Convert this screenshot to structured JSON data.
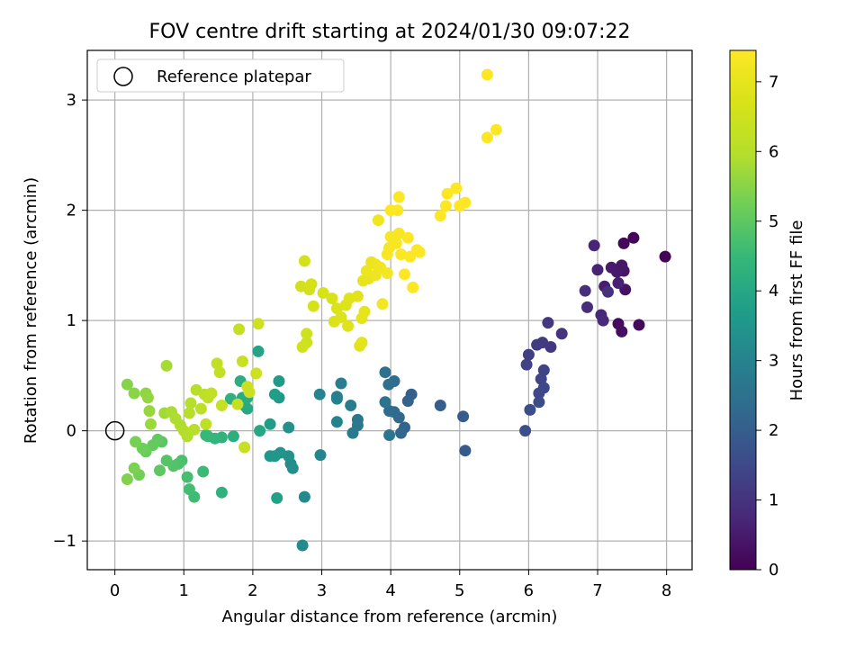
{
  "chart_data": {
    "type": "scatter",
    "title": "FOV centre drift starting at 2024/01/30 09:07:22",
    "xlabel": "Angular distance from reference (arcmin)",
    "ylabel": "Rotation from reference (arcmin)",
    "xlim": [
      -0.4,
      8.37
    ],
    "ylim": [
      -1.26,
      3.45
    ],
    "xticks": [
      "0",
      "1",
      "2",
      "3",
      "4",
      "5",
      "6",
      "7",
      "8"
    ],
    "yticks": [
      "−1",
      "0",
      "1",
      "2",
      "3"
    ],
    "grid": true,
    "legend": {
      "position": "top-left",
      "entries": [
        {
          "label": "Reference platepar",
          "marker": "open-circle"
        }
      ]
    },
    "reference_point": {
      "x": 0,
      "y": 0
    },
    "colorbar": {
      "label": "Hours from first FF file",
      "colormap": "viridis",
      "range": [
        0,
        7.45
      ],
      "ticks": [
        "0",
        "1",
        "2",
        "3",
        "4",
        "5",
        "6",
        "7"
      ]
    },
    "points": [
      [
        7.98,
        1.58,
        0.05
      ],
      [
        7.52,
        1.75,
        0.1
      ],
      [
        7.38,
        1.7,
        0.12
      ],
      [
        7.6,
        0.96,
        0.15
      ],
      [
        7.3,
        0.97,
        0.2
      ],
      [
        7.35,
        0.9,
        0.25
      ],
      [
        7.4,
        1.28,
        0.3
      ],
      [
        7.38,
        1.45,
        0.35
      ],
      [
        7.35,
        1.5,
        0.4
      ],
      [
        7.28,
        1.44,
        0.45
      ],
      [
        7.2,
        1.48,
        0.5
      ],
      [
        7.1,
        1.31,
        0.55
      ],
      [
        7.3,
        1.34,
        0.6
      ],
      [
        7.0,
        1.46,
        0.65
      ],
      [
        6.95,
        1.68,
        0.7
      ],
      [
        7.05,
        1.05,
        0.75
      ],
      [
        7.08,
        1.0,
        0.8
      ],
      [
        6.85,
        1.12,
        0.85
      ],
      [
        6.82,
        1.27,
        0.9
      ],
      [
        7.15,
        1.26,
        0.95
      ],
      [
        6.48,
        0.88,
        1.0
      ],
      [
        6.28,
        0.98,
        1.05
      ],
      [
        6.32,
        0.76,
        1.1
      ],
      [
        6.2,
        0.8,
        1.15
      ],
      [
        6.12,
        0.78,
        1.2
      ],
      [
        6.0,
        0.69,
        1.25
      ],
      [
        5.97,
        0.6,
        1.3
      ],
      [
        6.22,
        0.55,
        1.35
      ],
      [
        6.18,
        0.47,
        1.4
      ],
      [
        6.22,
        0.39,
        1.45
      ],
      [
        6.15,
        0.34,
        1.5
      ],
      [
        6.15,
        0.26,
        1.55
      ],
      [
        6.02,
        0.19,
        1.6
      ],
      [
        5.95,
        0.0,
        1.65
      ],
      [
        5.08,
        -0.18,
        1.9
      ],
      [
        5.05,
        0.13,
        1.95
      ],
      [
        4.72,
        0.23,
        2.0
      ],
      [
        4.3,
        0.33,
        2.05
      ],
      [
        4.25,
        0.27,
        2.1
      ],
      [
        4.2,
        0.03,
        2.15
      ],
      [
        4.15,
        -0.02,
        2.2
      ],
      [
        4.12,
        0.12,
        2.25
      ],
      [
        4.05,
        0.17,
        2.3
      ],
      [
        3.98,
        0.18,
        2.35
      ],
      [
        4.05,
        0.45,
        2.4
      ],
      [
        3.97,
        0.42,
        2.45
      ],
      [
        3.92,
        0.53,
        2.5
      ],
      [
        3.92,
        0.26,
        2.55
      ],
      [
        3.98,
        -0.04,
        2.6
      ],
      [
        3.52,
        0.1,
        2.65
      ],
      [
        3.52,
        0.05,
        2.7
      ],
      [
        3.45,
        -0.02,
        2.75
      ],
      [
        3.42,
        0.23,
        2.8
      ],
      [
        3.28,
        0.43,
        2.85
      ],
      [
        3.22,
        0.31,
        2.9
      ],
      [
        3.22,
        0.29,
        2.95
      ],
      [
        3.22,
        0.08,
        3.0
      ],
      [
        2.97,
        0.33,
        3.05
      ],
      [
        2.98,
        -0.22,
        3.1
      ],
      [
        2.75,
        -0.6,
        3.15
      ],
      [
        2.72,
        -1.04,
        3.2
      ],
      [
        2.55,
        -0.3,
        3.25
      ],
      [
        2.58,
        -0.34,
        3.3
      ],
      [
        2.52,
        0.03,
        3.35
      ],
      [
        2.52,
        -0.23,
        3.4
      ],
      [
        2.4,
        -0.2,
        3.45
      ],
      [
        2.32,
        -0.23,
        3.5
      ],
      [
        2.25,
        -0.23,
        3.55
      ],
      [
        2.38,
        0.3,
        3.6
      ],
      [
        2.38,
        0.45,
        3.65
      ],
      [
        2.25,
        0.06,
        3.7
      ],
      [
        2.32,
        0.33,
        3.75
      ],
      [
        2.35,
        -0.61,
        3.8
      ],
      [
        2.08,
        0.72,
        3.9
      ],
      [
        2.1,
        0.0,
        3.95
      ],
      [
        1.92,
        0.2,
        4.0
      ],
      [
        1.88,
        0.23,
        4.05
      ],
      [
        1.92,
        0.3,
        4.1
      ],
      [
        1.85,
        0.3,
        4.1
      ],
      [
        1.82,
        0.45,
        4.15
      ],
      [
        1.72,
        -0.05,
        4.2
      ],
      [
        1.68,
        0.29,
        4.25
      ],
      [
        1.55,
        -0.56,
        4.3
      ],
      [
        1.55,
        -0.06,
        4.35
      ],
      [
        1.45,
        -0.07,
        4.4
      ],
      [
        1.35,
        -0.05,
        4.45
      ],
      [
        1.32,
        -0.04,
        4.5
      ],
      [
        1.28,
        -0.37,
        4.55
      ],
      [
        1.15,
        -0.6,
        4.6
      ],
      [
        1.08,
        -0.53,
        4.65
      ],
      [
        1.05,
        -0.42,
        4.7
      ],
      [
        0.97,
        -0.27,
        4.75
      ],
      [
        0.92,
        -0.3,
        4.8
      ],
      [
        0.85,
        -0.32,
        4.85
      ],
      [
        0.75,
        -0.27,
        4.9
      ],
      [
        0.68,
        -0.1,
        4.95
      ],
      [
        0.65,
        -0.36,
        5.0
      ],
      [
        0.62,
        -0.08,
        5.05
      ],
      [
        0.55,
        -0.13,
        5.1
      ],
      [
        0.45,
        -0.19,
        5.15
      ],
      [
        0.4,
        -0.16,
        5.2
      ],
      [
        0.35,
        -0.4,
        5.25
      ],
      [
        0.3,
        -0.1,
        5.3
      ],
      [
        0.28,
        -0.34,
        5.35
      ],
      [
        0.18,
        -0.44,
        5.4
      ],
      [
        0.18,
        0.42,
        5.45
      ],
      [
        0.28,
        0.34,
        5.5
      ],
      [
        0.45,
        0.34,
        5.55
      ],
      [
        0.48,
        0.3,
        5.6
      ],
      [
        0.5,
        0.18,
        5.65
      ],
      [
        0.52,
        0.06,
        5.7
      ],
      [
        0.72,
        0.16,
        5.75
      ],
      [
        0.75,
        0.59,
        5.8
      ],
      [
        0.82,
        0.17,
        5.85
      ],
      [
        0.88,
        0.11,
        5.9
      ],
      [
        0.95,
        0.05,
        5.9
      ],
      [
        1.0,
        0.0,
        5.95
      ],
      [
        1.05,
        -0.05,
        5.95
      ],
      [
        1.08,
        0.16,
        6.0
      ],
      [
        1.1,
        0.25,
        6.0
      ],
      [
        1.15,
        0.01,
        6.05
      ],
      [
        1.18,
        0.37,
        6.05
      ],
      [
        1.25,
        0.2,
        6.1
      ],
      [
        1.3,
        0.33,
        6.1
      ],
      [
        1.32,
        0.06,
        6.15
      ],
      [
        1.35,
        0.3,
        6.15
      ],
      [
        1.4,
        0.34,
        6.2
      ],
      [
        1.48,
        0.61,
        6.2
      ],
      [
        1.52,
        0.53,
        6.25
      ],
      [
        1.55,
        0.23,
        6.25
      ],
      [
        1.8,
        0.92,
        6.3
      ],
      [
        1.78,
        0.24,
        6.3
      ],
      [
        1.85,
        0.63,
        6.35
      ],
      [
        1.88,
        -0.15,
        6.35
      ],
      [
        1.92,
        0.4,
        6.4
      ],
      [
        1.95,
        0.35,
        6.4
      ],
      [
        2.05,
        0.52,
        6.45
      ],
      [
        2.08,
        0.97,
        6.45
      ],
      [
        2.78,
        0.88,
        6.5
      ],
      [
        2.78,
        0.8,
        6.5
      ],
      [
        2.72,
        0.76,
        6.55
      ],
      [
        2.7,
        1.31,
        6.55
      ],
      [
        2.75,
        1.54,
        6.6
      ],
      [
        2.82,
        1.28,
        6.6
      ],
      [
        2.85,
        1.33,
        6.65
      ],
      [
        2.88,
        1.13,
        6.65
      ],
      [
        3.02,
        1.25,
        6.7
      ],
      [
        3.15,
        1.2,
        6.7
      ],
      [
        3.18,
        0.99,
        6.75
      ],
      [
        3.22,
        1.11,
        6.75
      ],
      [
        3.28,
        1.03,
        6.8
      ],
      [
        3.35,
        1.14,
        6.8
      ],
      [
        3.38,
        0.95,
        6.85
      ],
      [
        3.4,
        1.2,
        6.85
      ],
      [
        3.52,
        1.22,
        6.9
      ],
      [
        3.55,
        0.77,
        6.9
      ],
      [
        3.58,
        0.8,
        6.95
      ],
      [
        3.58,
        1.02,
        6.95
      ],
      [
        3.6,
        1.36,
        7.0
      ],
      [
        3.62,
        1.08,
        7.0
      ],
      [
        3.68,
        1.38,
        7.05
      ],
      [
        3.72,
        1.53,
        7.05
      ],
      [
        3.78,
        1.51,
        7.1
      ],
      [
        3.78,
        1.41,
        7.15
      ],
      [
        3.82,
        1.91,
        7.2
      ],
      [
        3.85,
        1.48,
        7.2
      ],
      [
        3.88,
        1.15,
        7.25
      ],
      [
        3.95,
        1.43,
        7.25
      ],
      [
        3.98,
        1.66,
        7.3
      ],
      [
        4.0,
        1.76,
        7.3
      ],
      [
        4.08,
        1.7,
        7.35
      ],
      [
        4.12,
        1.79,
        7.35
      ],
      [
        4.12,
        2.12,
        7.4
      ],
      [
        4.15,
        1.6,
        7.4
      ],
      [
        4.2,
        1.42,
        7.45
      ],
      [
        4.28,
        1.58,
        7.45
      ],
      [
        4.32,
        1.3,
        7.45
      ],
      [
        4.38,
        1.64,
        7.45
      ],
      [
        4.72,
        1.95,
        7.45
      ],
      [
        4.8,
        2.04,
        7.45
      ],
      [
        4.82,
        2.15,
        7.45
      ],
      [
        4.95,
        2.2,
        7.45
      ],
      [
        5.0,
        2.04,
        7.45
      ],
      [
        5.08,
        2.07,
        7.45
      ],
      [
        4.42,
        1.62,
        7.45
      ],
      [
        4.0,
        2.0,
        7.45
      ],
      [
        4.1,
        2.0,
        7.45
      ],
      [
        4.25,
        1.75,
        7.4
      ],
      [
        3.65,
        1.45,
        7.1
      ],
      [
        3.95,
        1.6,
        7.3
      ],
      [
        5.4,
        3.23,
        8.0
      ],
      [
        5.4,
        2.66,
        8.0
      ],
      [
        5.53,
        2.73,
        8.0
      ]
    ]
  }
}
